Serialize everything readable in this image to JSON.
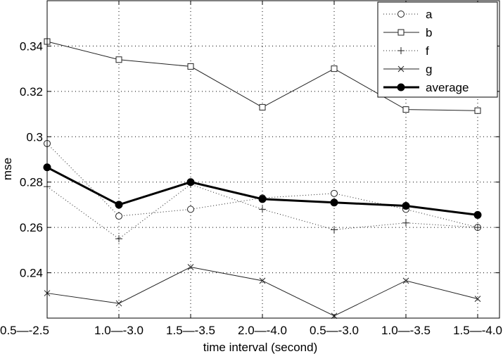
{
  "chart_data": {
    "type": "line",
    "title": "",
    "xlabel": "time interval (second)",
    "ylabel": "mse",
    "categories": [
      "0.5—-2.5",
      "1.0—-3.0",
      "1.5—-3.5",
      "2.0—-4.0",
      "0.5—-3.0",
      "1.0—-3.5",
      "1.5—-4.0"
    ],
    "ylim": [
      0.22,
      0.36
    ],
    "yticks": [
      0.24,
      0.26,
      0.28,
      0.3,
      0.32,
      0.34
    ],
    "ytick_labels": [
      "0.24",
      "0.26",
      "0.28",
      "0.3",
      "0.32",
      "0.34"
    ],
    "grid": true,
    "legend_position": "top-right",
    "series": [
      {
        "name": "a",
        "style": "dotted",
        "marker": "circle",
        "values": [
          0.297,
          0.265,
          0.268,
          0.273,
          0.275,
          0.268,
          0.26
        ]
      },
      {
        "name": "b",
        "style": "solid",
        "marker": "square",
        "values": [
          0.342,
          0.334,
          0.331,
          0.313,
          0.33,
          0.312,
          0.3115
        ]
      },
      {
        "name": "f",
        "style": "dotted",
        "marker": "plus",
        "values": [
          0.278,
          0.255,
          0.279,
          0.268,
          0.259,
          0.262,
          0.26
        ]
      },
      {
        "name": "g",
        "style": "solid",
        "marker": "x",
        "values": [
          0.231,
          0.2265,
          0.2425,
          0.2365,
          0.221,
          0.2365,
          0.2285
        ]
      },
      {
        "name": "average",
        "style": "bold",
        "marker": "filled-circle",
        "values": [
          0.2865,
          0.27,
          0.28,
          0.2725,
          0.271,
          0.2695,
          0.2655
        ]
      }
    ]
  }
}
